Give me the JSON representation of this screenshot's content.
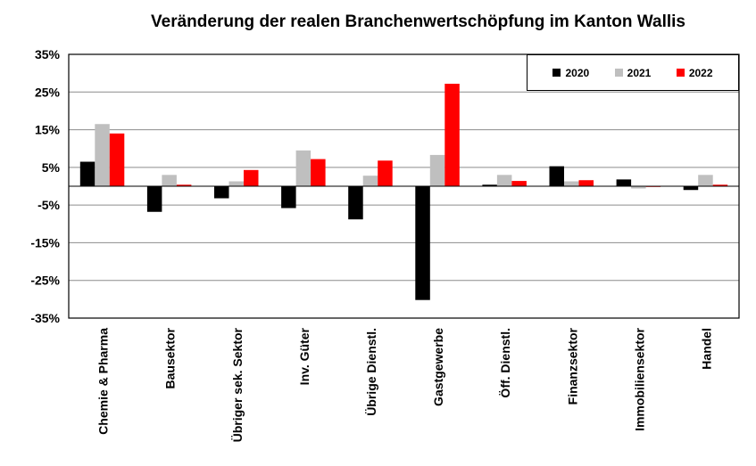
{
  "chart_data": {
    "type": "bar",
    "title": "Veränderung der realen Branchenwertschöpfung im Kanton Wallis",
    "xlabel": "",
    "ylabel": "",
    "ylim": [
      -35,
      35
    ],
    "ytick_values": [
      -35,
      -25,
      -15,
      -5,
      5,
      15,
      25,
      35
    ],
    "ytick_labels": [
      "-35%",
      "-25%",
      "-15%",
      "-5%",
      "5%",
      "15%",
      "25%",
      "35%"
    ],
    "grid": true,
    "legend_position": "top-right",
    "categories": [
      "Chemie & Pharma",
      "Bausektor",
      "Übriger sek. Sektor",
      "Inv. Güter",
      "Übrige Dienstl.",
      "Gastgewerbe",
      "Öff. Dienstl.",
      "Finanzsektor",
      "Immobiliensektor",
      "Handel"
    ],
    "series": [
      {
        "name": "2020",
        "color": "#000000",
        "values": [
          6.5,
          -6.8,
          -3.2,
          -5.8,
          -8.8,
          -30.2,
          0.4,
          5.3,
          1.8,
          -1.0
        ]
      },
      {
        "name": "2021",
        "color": "#bfbfbf",
        "values": [
          16.5,
          3.0,
          1.3,
          9.5,
          2.8,
          8.3,
          3.0,
          1.3,
          -0.6,
          3.0
        ]
      },
      {
        "name": "2022",
        "color": "#ff0000",
        "values": [
          14.0,
          0.4,
          4.3,
          7.2,
          6.8,
          27.2,
          1.4,
          1.6,
          0.0,
          0.4
        ]
      }
    ]
  }
}
